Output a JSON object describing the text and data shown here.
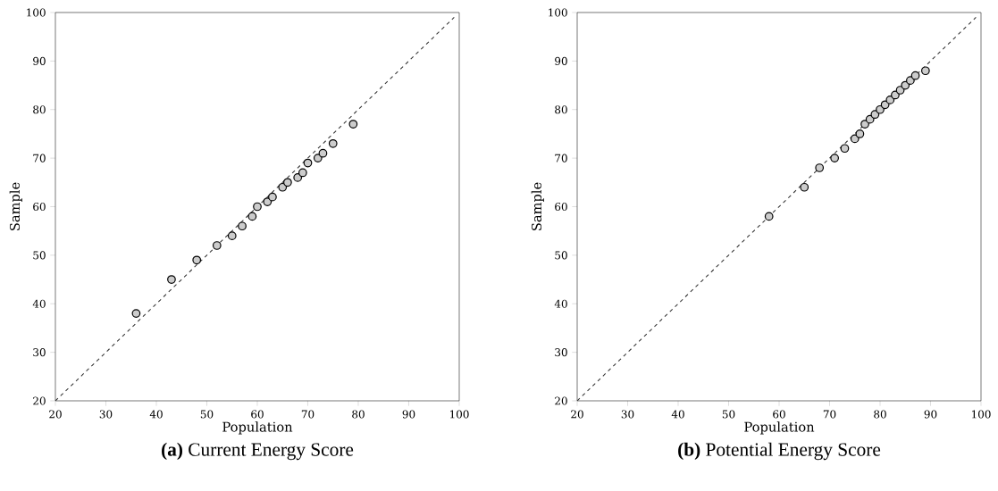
{
  "chart_data": [
    {
      "type": "scatter",
      "title": "**(a)** Current Energy Score",
      "xlabel": "Population",
      "ylabel": "Sample",
      "xlim": [
        20,
        100
      ],
      "ylim": [
        20,
        100
      ],
      "xticks": [
        20,
        30,
        40,
        50,
        60,
        70,
        80,
        90,
        100
      ],
      "yticks": [
        20,
        30,
        40,
        50,
        60,
        70,
        80,
        90,
        100
      ],
      "marker": "circle",
      "grid": false,
      "series": [
        {
          "type": "scatter",
          "color": "#cccccc",
          "x": [
            36,
            43,
            48,
            52,
            55,
            57,
            59,
            60,
            62,
            63,
            65,
            66,
            68,
            69,
            70,
            72,
            73,
            75,
            79
          ],
          "values": [
            38,
            45,
            49,
            52,
            54,
            56,
            58,
            60,
            61,
            62,
            64,
            65,
            66,
            67,
            69,
            70,
            71,
            73,
            77
          ]
        },
        {
          "type": "line",
          "color": "#333333",
          "line_style": "dashed",
          "marker": "none",
          "x": [
            20,
            99
          ],
          "values": [
            20,
            99
          ]
        }
      ]
    },
    {
      "type": "scatter",
      "title": "**(b)** Potential Energy Score",
      "xlabel": "Population",
      "ylabel": "Sample",
      "xlim": [
        20,
        100
      ],
      "ylim": [
        20,
        100
      ],
      "xticks": [
        20,
        30,
        40,
        50,
        60,
        70,
        80,
        90,
        100
      ],
      "yticks": [
        20,
        30,
        40,
        50,
        60,
        70,
        80,
        90,
        100
      ],
      "marker": "circle",
      "grid": false,
      "series": [
        {
          "type": "scatter",
          "color": "#cccccc",
          "x": [
            58,
            65,
            68,
            71,
            73,
            75,
            76,
            77,
            78,
            79,
            80,
            81,
            82,
            83,
            84,
            85,
            86,
            87,
            89
          ],
          "values": [
            58,
            64,
            68,
            70,
            72,
            74,
            75,
            77,
            78,
            79,
            80,
            81,
            82,
            83,
            84,
            85,
            86,
            87,
            88
          ]
        },
        {
          "type": "line",
          "color": "#333333",
          "line_style": "dashed",
          "marker": "none",
          "x": [
            20,
            99
          ],
          "values": [
            20,
            99
          ]
        }
      ]
    }
  ]
}
